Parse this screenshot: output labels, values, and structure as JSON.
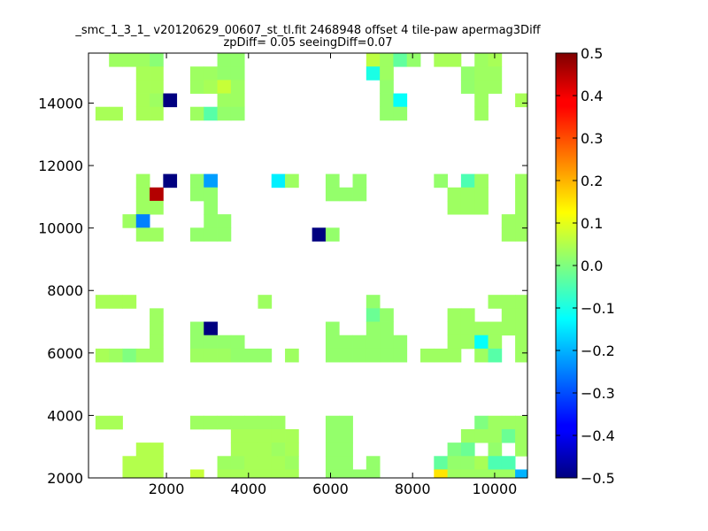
{
  "chart_data": {
    "type": "heatmap",
    "title_line1": "_smc_1_3_1_ v20120629_00607_st_tl.fit 2468948 offset 4 tile-paw apermag3Diff",
    "title_line2": "zpDiff= 0.05 seeingDiff=0.07",
    "xlim": [
      100,
      10800
    ],
    "ylim": [
      2000,
      15600
    ],
    "x_ticks": [
      2000,
      4000,
      6000,
      8000,
      10000
    ],
    "y_ticks": [
      2000,
      4000,
      6000,
      8000,
      10000,
      12000,
      14000
    ],
    "cell_size": [
      330,
      430
    ],
    "colorbar": {
      "colormap": "jet",
      "vmin": -0.5,
      "vmax": 0.5,
      "ticks": [
        -0.5,
        -0.4,
        -0.3,
        -0.2,
        -0.1,
        0.0,
        0.1,
        0.2,
        0.3,
        0.4,
        0.5
      ],
      "tick_labels": [
        "−0.5",
        "−0.4",
        "−0.3",
        "−0.2",
        "−0.1",
        "0.0",
        "0.1",
        "0.2",
        "0.3",
        "0.4",
        "0.5"
      ]
    },
    "cells": [
      {
        "x": 765,
        "y": 15385,
        "v": 0.03
      },
      {
        "x": 1095,
        "y": 15385,
        "v": 0.03
      },
      {
        "x": 1425,
        "y": 15385,
        "v": 0.03
      },
      {
        "x": 1755,
        "y": 15385,
        "v": 0.01
      },
      {
        "x": 3405,
        "y": 15385,
        "v": 0.02
      },
      {
        "x": 3735,
        "y": 15385,
        "v": 0.02
      },
      {
        "x": 7035,
        "y": 15385,
        "v": 0.06
      },
      {
        "x": 7365,
        "y": 15385,
        "v": 0.03
      },
      {
        "x": 7695,
        "y": 15385,
        "v": -0.03
      },
      {
        "x": 8025,
        "y": 15385,
        "v": 0.02
      },
      {
        "x": 8685,
        "y": 15385,
        "v": 0.04
      },
      {
        "x": 9015,
        "y": 15385,
        "v": 0.04
      },
      {
        "x": 9675,
        "y": 15385,
        "v": 0.03
      },
      {
        "x": 10005,
        "y": 15385,
        "v": 0.04
      },
      {
        "x": 1425,
        "y": 14955,
        "v": 0.04
      },
      {
        "x": 1755,
        "y": 14955,
        "v": 0.04
      },
      {
        "x": 2745,
        "y": 14955,
        "v": 0.03
      },
      {
        "x": 3075,
        "y": 14955,
        "v": 0.03
      },
      {
        "x": 3405,
        "y": 14955,
        "v": 0.02
      },
      {
        "x": 3735,
        "y": 14955,
        "v": 0.02
      },
      {
        "x": 7035,
        "y": 14955,
        "v": -0.1
      },
      {
        "x": 7365,
        "y": 14955,
        "v": 0.03
      },
      {
        "x": 9345,
        "y": 14955,
        "v": 0.02
      },
      {
        "x": 9675,
        "y": 14955,
        "v": 0.03
      },
      {
        "x": 10005,
        "y": 14955,
        "v": 0.03
      },
      {
        "x": 1425,
        "y": 14525,
        "v": 0.04
      },
      {
        "x": 1755,
        "y": 14525,
        "v": 0.04
      },
      {
        "x": 2745,
        "y": 14525,
        "v": 0.03
      },
      {
        "x": 3075,
        "y": 14525,
        "v": 0.04
      },
      {
        "x": 3405,
        "y": 14525,
        "v": 0.07
      },
      {
        "x": 3735,
        "y": 14525,
        "v": 0.03
      },
      {
        "x": 7365,
        "y": 14525,
        "v": 0.02
      },
      {
        "x": 9345,
        "y": 14525,
        "v": 0.02
      },
      {
        "x": 9675,
        "y": 14525,
        "v": 0.03
      },
      {
        "x": 10005,
        "y": 14525,
        "v": 0.03
      },
      {
        "x": 1425,
        "y": 14095,
        "v": 0.04
      },
      {
        "x": 1755,
        "y": 14095,
        "v": 0.03
      },
      {
        "x": 2085,
        "y": 14095,
        "v": -0.5
      },
      {
        "x": 3405,
        "y": 14095,
        "v": 0.03
      },
      {
        "x": 3735,
        "y": 14095,
        "v": 0.03
      },
      {
        "x": 7365,
        "y": 14095,
        "v": 0.02
      },
      {
        "x": 7695,
        "y": 14095,
        "v": -0.12
      },
      {
        "x": 9675,
        "y": 14095,
        "v": 0.03
      },
      {
        "x": 10665,
        "y": 14095,
        "v": 0.04
      },
      {
        "x": 435,
        "y": 13665,
        "v": 0.04
      },
      {
        "x": 765,
        "y": 13665,
        "v": 0.04
      },
      {
        "x": 1425,
        "y": 13665,
        "v": 0.04
      },
      {
        "x": 1755,
        "y": 13665,
        "v": 0.04
      },
      {
        "x": 2745,
        "y": 13665,
        "v": 0.03
      },
      {
        "x": 3075,
        "y": 13665,
        "v": -0.04
      },
      {
        "x": 3405,
        "y": 13665,
        "v": 0.02
      },
      {
        "x": 3735,
        "y": 13665,
        "v": 0.02
      },
      {
        "x": 7365,
        "y": 13665,
        "v": 0.02
      },
      {
        "x": 7695,
        "y": 13665,
        "v": 0.02
      },
      {
        "x": 9675,
        "y": 13665,
        "v": 0.03
      },
      {
        "x": 1425,
        "y": 11515,
        "v": 0.03
      },
      {
        "x": 2085,
        "y": 11515,
        "v": -0.5
      },
      {
        "x": 2745,
        "y": 11515,
        "v": 0.02
      },
      {
        "x": 3075,
        "y": 11515,
        "v": -0.22
      },
      {
        "x": 4725,
        "y": 11515,
        "v": -0.14
      },
      {
        "x": 5055,
        "y": 11515,
        "v": 0.03
      },
      {
        "x": 6045,
        "y": 11515,
        "v": 0.02
      },
      {
        "x": 6705,
        "y": 11515,
        "v": 0.02
      },
      {
        "x": 8685,
        "y": 11515,
        "v": 0.02
      },
      {
        "x": 9345,
        "y": 11515,
        "v": -0.05
      },
      {
        "x": 9675,
        "y": 11515,
        "v": 0.03
      },
      {
        "x": 10665,
        "y": 11515,
        "v": 0.03
      },
      {
        "x": 1425,
        "y": 11085,
        "v": 0.03
      },
      {
        "x": 1755,
        "y": 11085,
        "v": 0.45
      },
      {
        "x": 2745,
        "y": 11085,
        "v": 0.02
      },
      {
        "x": 3075,
        "y": 11085,
        "v": 0.02
      },
      {
        "x": 6045,
        "y": 11085,
        "v": 0.02
      },
      {
        "x": 6375,
        "y": 11085,
        "v": 0.02
      },
      {
        "x": 6705,
        "y": 11085,
        "v": 0.02
      },
      {
        "x": 9015,
        "y": 11085,
        "v": 0.03
      },
      {
        "x": 9345,
        "y": 11085,
        "v": 0.03
      },
      {
        "x": 9675,
        "y": 11085,
        "v": 0.03
      },
      {
        "x": 10665,
        "y": 11085,
        "v": 0.03
      },
      {
        "x": 1425,
        "y": 10655,
        "v": 0.03
      },
      {
        "x": 1755,
        "y": 10655,
        "v": 0.03
      },
      {
        "x": 3075,
        "y": 10655,
        "v": 0.02
      },
      {
        "x": 9015,
        "y": 10655,
        "v": 0.03
      },
      {
        "x": 9345,
        "y": 10655,
        "v": 0.03
      },
      {
        "x": 9675,
        "y": 10655,
        "v": 0.03
      },
      {
        "x": 10665,
        "y": 10655,
        "v": 0.03
      },
      {
        "x": 1095,
        "y": 10225,
        "v": 0.03
      },
      {
        "x": 1425,
        "y": 10225,
        "v": -0.25
      },
      {
        "x": 3075,
        "y": 10225,
        "v": 0.02
      },
      {
        "x": 3405,
        "y": 10225,
        "v": 0.02
      },
      {
        "x": 10335,
        "y": 10225,
        "v": 0.03
      },
      {
        "x": 10665,
        "y": 10225,
        "v": 0.03
      },
      {
        "x": 1425,
        "y": 9795,
        "v": 0.03
      },
      {
        "x": 1755,
        "y": 9795,
        "v": 0.03
      },
      {
        "x": 2745,
        "y": 9795,
        "v": 0.02
      },
      {
        "x": 3075,
        "y": 9795,
        "v": 0.02
      },
      {
        "x": 3405,
        "y": 9795,
        "v": 0.02
      },
      {
        "x": 5715,
        "y": 9795,
        "v": -0.5
      },
      {
        "x": 6045,
        "y": 9795,
        "v": 0.02
      },
      {
        "x": 10335,
        "y": 9795,
        "v": 0.03
      },
      {
        "x": 10665,
        "y": 9795,
        "v": 0.03
      },
      {
        "x": 435,
        "y": 7645,
        "v": 0.04
      },
      {
        "x": 765,
        "y": 7645,
        "v": 0.04
      },
      {
        "x": 1095,
        "y": 7645,
        "v": 0.04
      },
      {
        "x": 4395,
        "y": 7645,
        "v": 0.03
      },
      {
        "x": 7035,
        "y": 7645,
        "v": 0.02
      },
      {
        "x": 10005,
        "y": 7645,
        "v": 0.03
      },
      {
        "x": 10335,
        "y": 7645,
        "v": 0.03
      },
      {
        "x": 10665,
        "y": 7645,
        "v": 0.03
      },
      {
        "x": 1755,
        "y": 7215,
        "v": 0.03
      },
      {
        "x": 7035,
        "y": 7215,
        "v": -0.02
      },
      {
        "x": 7365,
        "y": 7215,
        "v": 0.02
      },
      {
        "x": 9015,
        "y": 7215,
        "v": 0.03
      },
      {
        "x": 9345,
        "y": 7215,
        "v": 0.03
      },
      {
        "x": 10335,
        "y": 7215,
        "v": 0.03
      },
      {
        "x": 10665,
        "y": 7215,
        "v": 0.03
      },
      {
        "x": 1755,
        "y": 6785,
        "v": 0.03
      },
      {
        "x": 2745,
        "y": 6785,
        "v": 0.02
      },
      {
        "x": 3075,
        "y": 6785,
        "v": -0.5
      },
      {
        "x": 6045,
        "y": 6785,
        "v": 0.02
      },
      {
        "x": 7035,
        "y": 6785,
        "v": 0.02
      },
      {
        "x": 7365,
        "y": 6785,
        "v": 0.02
      },
      {
        "x": 9015,
        "y": 6785,
        "v": 0.03
      },
      {
        "x": 9345,
        "y": 6785,
        "v": 0.03
      },
      {
        "x": 9675,
        "y": 6785,
        "v": 0.03
      },
      {
        "x": 10005,
        "y": 6785,
        "v": 0.03
      },
      {
        "x": 10335,
        "y": 6785,
        "v": 0.03
      },
      {
        "x": 10665,
        "y": 6785,
        "v": 0.03
      },
      {
        "x": 1755,
        "y": 6355,
        "v": 0.03
      },
      {
        "x": 2745,
        "y": 6355,
        "v": 0.02
      },
      {
        "x": 3075,
        "y": 6355,
        "v": 0.02
      },
      {
        "x": 3405,
        "y": 6355,
        "v": 0.02
      },
      {
        "x": 3735,
        "y": 6355,
        "v": 0.02
      },
      {
        "x": 6045,
        "y": 6355,
        "v": 0.02
      },
      {
        "x": 6375,
        "y": 6355,
        "v": 0.02
      },
      {
        "x": 6705,
        "y": 6355,
        "v": 0.02
      },
      {
        "x": 7035,
        "y": 6355,
        "v": 0.02
      },
      {
        "x": 7365,
        "y": 6355,
        "v": 0.02
      },
      {
        "x": 7695,
        "y": 6355,
        "v": 0.02
      },
      {
        "x": 9015,
        "y": 6355,
        "v": 0.03
      },
      {
        "x": 9345,
        "y": 6355,
        "v": 0.03
      },
      {
        "x": 9675,
        "y": 6355,
        "v": -0.12
      },
      {
        "x": 10005,
        "y": 6355,
        "v": 0.03
      },
      {
        "x": 10665,
        "y": 6355,
        "v": 0.03
      },
      {
        "x": 435,
        "y": 5925,
        "v": 0.04
      },
      {
        "x": 765,
        "y": 5925,
        "v": 0.03
      },
      {
        "x": 1095,
        "y": 5925,
        "v": 0.0
      },
      {
        "x": 1425,
        "y": 5925,
        "v": 0.03
      },
      {
        "x": 1755,
        "y": 5925,
        "v": 0.03
      },
      {
        "x": 2745,
        "y": 5925,
        "v": 0.03
      },
      {
        "x": 3075,
        "y": 5925,
        "v": 0.03
      },
      {
        "x": 3405,
        "y": 5925,
        "v": 0.03
      },
      {
        "x": 3735,
        "y": 5925,
        "v": 0.02
      },
      {
        "x": 4065,
        "y": 5925,
        "v": 0.02
      },
      {
        "x": 4395,
        "y": 5925,
        "v": 0.02
      },
      {
        "x": 5055,
        "y": 5925,
        "v": 0.03
      },
      {
        "x": 6045,
        "y": 5925,
        "v": 0.02
      },
      {
        "x": 6375,
        "y": 5925,
        "v": 0.02
      },
      {
        "x": 6705,
        "y": 5925,
        "v": 0.02
      },
      {
        "x": 7035,
        "y": 5925,
        "v": 0.02
      },
      {
        "x": 7365,
        "y": 5925,
        "v": 0.02
      },
      {
        "x": 7695,
        "y": 5925,
        "v": 0.02
      },
      {
        "x": 8355,
        "y": 5925,
        "v": 0.03
      },
      {
        "x": 8685,
        "y": 5925,
        "v": 0.03
      },
      {
        "x": 9015,
        "y": 5925,
        "v": 0.03
      },
      {
        "x": 9675,
        "y": 5925,
        "v": 0.03
      },
      {
        "x": 10005,
        "y": 5925,
        "v": -0.04
      },
      {
        "x": 10665,
        "y": 5925,
        "v": 0.03
      },
      {
        "x": 435,
        "y": 3775,
        "v": 0.04
      },
      {
        "x": 765,
        "y": 3775,
        "v": 0.04
      },
      {
        "x": 2745,
        "y": 3775,
        "v": 0.03
      },
      {
        "x": 3075,
        "y": 3775,
        "v": 0.03
      },
      {
        "x": 3405,
        "y": 3775,
        "v": 0.03
      },
      {
        "x": 3735,
        "y": 3775,
        "v": 0.03
      },
      {
        "x": 4065,
        "y": 3775,
        "v": 0.03
      },
      {
        "x": 4395,
        "y": 3775,
        "v": 0.03
      },
      {
        "x": 4725,
        "y": 3775,
        "v": 0.03
      },
      {
        "x": 6045,
        "y": 3775,
        "v": 0.02
      },
      {
        "x": 6375,
        "y": 3775,
        "v": 0.02
      },
      {
        "x": 9675,
        "y": 3775,
        "v": 0.0
      },
      {
        "x": 10005,
        "y": 3775,
        "v": 0.03
      },
      {
        "x": 10335,
        "y": 3775,
        "v": 0.03
      },
      {
        "x": 10665,
        "y": 3775,
        "v": 0.03
      },
      {
        "x": 3735,
        "y": 3345,
        "v": 0.04
      },
      {
        "x": 4065,
        "y": 3345,
        "v": 0.04
      },
      {
        "x": 4395,
        "y": 3345,
        "v": 0.04
      },
      {
        "x": 4725,
        "y": 3345,
        "v": 0.04
      },
      {
        "x": 5055,
        "y": 3345,
        "v": 0.04
      },
      {
        "x": 6045,
        "y": 3345,
        "v": 0.02
      },
      {
        "x": 6375,
        "y": 3345,
        "v": 0.02
      },
      {
        "x": 9345,
        "y": 3345,
        "v": 0.03
      },
      {
        "x": 9675,
        "y": 3345,
        "v": 0.03
      },
      {
        "x": 10005,
        "y": 3345,
        "v": 0.03
      },
      {
        "x": 10335,
        "y": 3345,
        "v": -0.02
      },
      {
        "x": 10665,
        "y": 3345,
        "v": 0.03
      },
      {
        "x": 1425,
        "y": 2915,
        "v": 0.05
      },
      {
        "x": 1755,
        "y": 2915,
        "v": 0.05
      },
      {
        "x": 3735,
        "y": 2915,
        "v": 0.04
      },
      {
        "x": 4065,
        "y": 2915,
        "v": 0.04
      },
      {
        "x": 4395,
        "y": 2915,
        "v": 0.04
      },
      {
        "x": 4725,
        "y": 2915,
        "v": 0.03
      },
      {
        "x": 5055,
        "y": 2915,
        "v": 0.04
      },
      {
        "x": 6045,
        "y": 2915,
        "v": 0.02
      },
      {
        "x": 6375,
        "y": 2915,
        "v": 0.02
      },
      {
        "x": 9015,
        "y": 2915,
        "v": 0.0
      },
      {
        "x": 9345,
        "y": 2915,
        "v": -0.02
      },
      {
        "x": 10005,
        "y": 2915,
        "v": 0.02
      },
      {
        "x": 10665,
        "y": 2915,
        "v": 0.03
      },
      {
        "x": 1095,
        "y": 2485,
        "v": 0.05
      },
      {
        "x": 1425,
        "y": 2485,
        "v": 0.05
      },
      {
        "x": 1755,
        "y": 2485,
        "v": 0.05
      },
      {
        "x": 3405,
        "y": 2485,
        "v": 0.03
      },
      {
        "x": 3735,
        "y": 2485,
        "v": 0.03
      },
      {
        "x": 4065,
        "y": 2485,
        "v": 0.04
      },
      {
        "x": 4395,
        "y": 2485,
        "v": 0.04
      },
      {
        "x": 4725,
        "y": 2485,
        "v": 0.04
      },
      {
        "x": 5055,
        "y": 2485,
        "v": 0.03
      },
      {
        "x": 6045,
        "y": 2485,
        "v": 0.02
      },
      {
        "x": 6375,
        "y": 2485,
        "v": 0.02
      },
      {
        "x": 7035,
        "y": 2485,
        "v": 0.02
      },
      {
        "x": 8685,
        "y": 2485,
        "v": -0.03
      },
      {
        "x": 9015,
        "y": 2485,
        "v": 0.02
      },
      {
        "x": 9345,
        "y": 2485,
        "v": 0.02
      },
      {
        "x": 9675,
        "y": 2485,
        "v": 0.04
      },
      {
        "x": 10005,
        "y": 2485,
        "v": -0.05
      },
      {
        "x": 10335,
        "y": 2485,
        "v": -0.05
      },
      {
        "x": 1095,
        "y": 2055,
        "v": 0.05
      },
      {
        "x": 1425,
        "y": 2055,
        "v": 0.05
      },
      {
        "x": 1755,
        "y": 2055,
        "v": 0.05
      },
      {
        "x": 2745,
        "y": 2055,
        "v": 0.07
      },
      {
        "x": 3405,
        "y": 2055,
        "v": 0.04
      },
      {
        "x": 3735,
        "y": 2055,
        "v": 0.04
      },
      {
        "x": 4065,
        "y": 2055,
        "v": 0.04
      },
      {
        "x": 4395,
        "y": 2055,
        "v": 0.04
      },
      {
        "x": 4725,
        "y": 2055,
        "v": 0.04
      },
      {
        "x": 5055,
        "y": 2055,
        "v": 0.04
      },
      {
        "x": 6045,
        "y": 2055,
        "v": 0.02
      },
      {
        "x": 6375,
        "y": 2055,
        "v": 0.02
      },
      {
        "x": 6705,
        "y": 2055,
        "v": 0.02
      },
      {
        "x": 7035,
        "y": 2055,
        "v": 0.02
      },
      {
        "x": 8685,
        "y": 2055,
        "v": 0.15
      },
      {
        "x": 9015,
        "y": 2055,
        "v": 0.03
      },
      {
        "x": 9345,
        "y": 2055,
        "v": 0.03
      },
      {
        "x": 9675,
        "y": 2055,
        "v": 0.03
      },
      {
        "x": 10005,
        "y": 2055,
        "v": 0.03
      },
      {
        "x": 10335,
        "y": 2055,
        "v": 0.03
      },
      {
        "x": 10665,
        "y": 2055,
        "v": -0.2
      }
    ]
  }
}
